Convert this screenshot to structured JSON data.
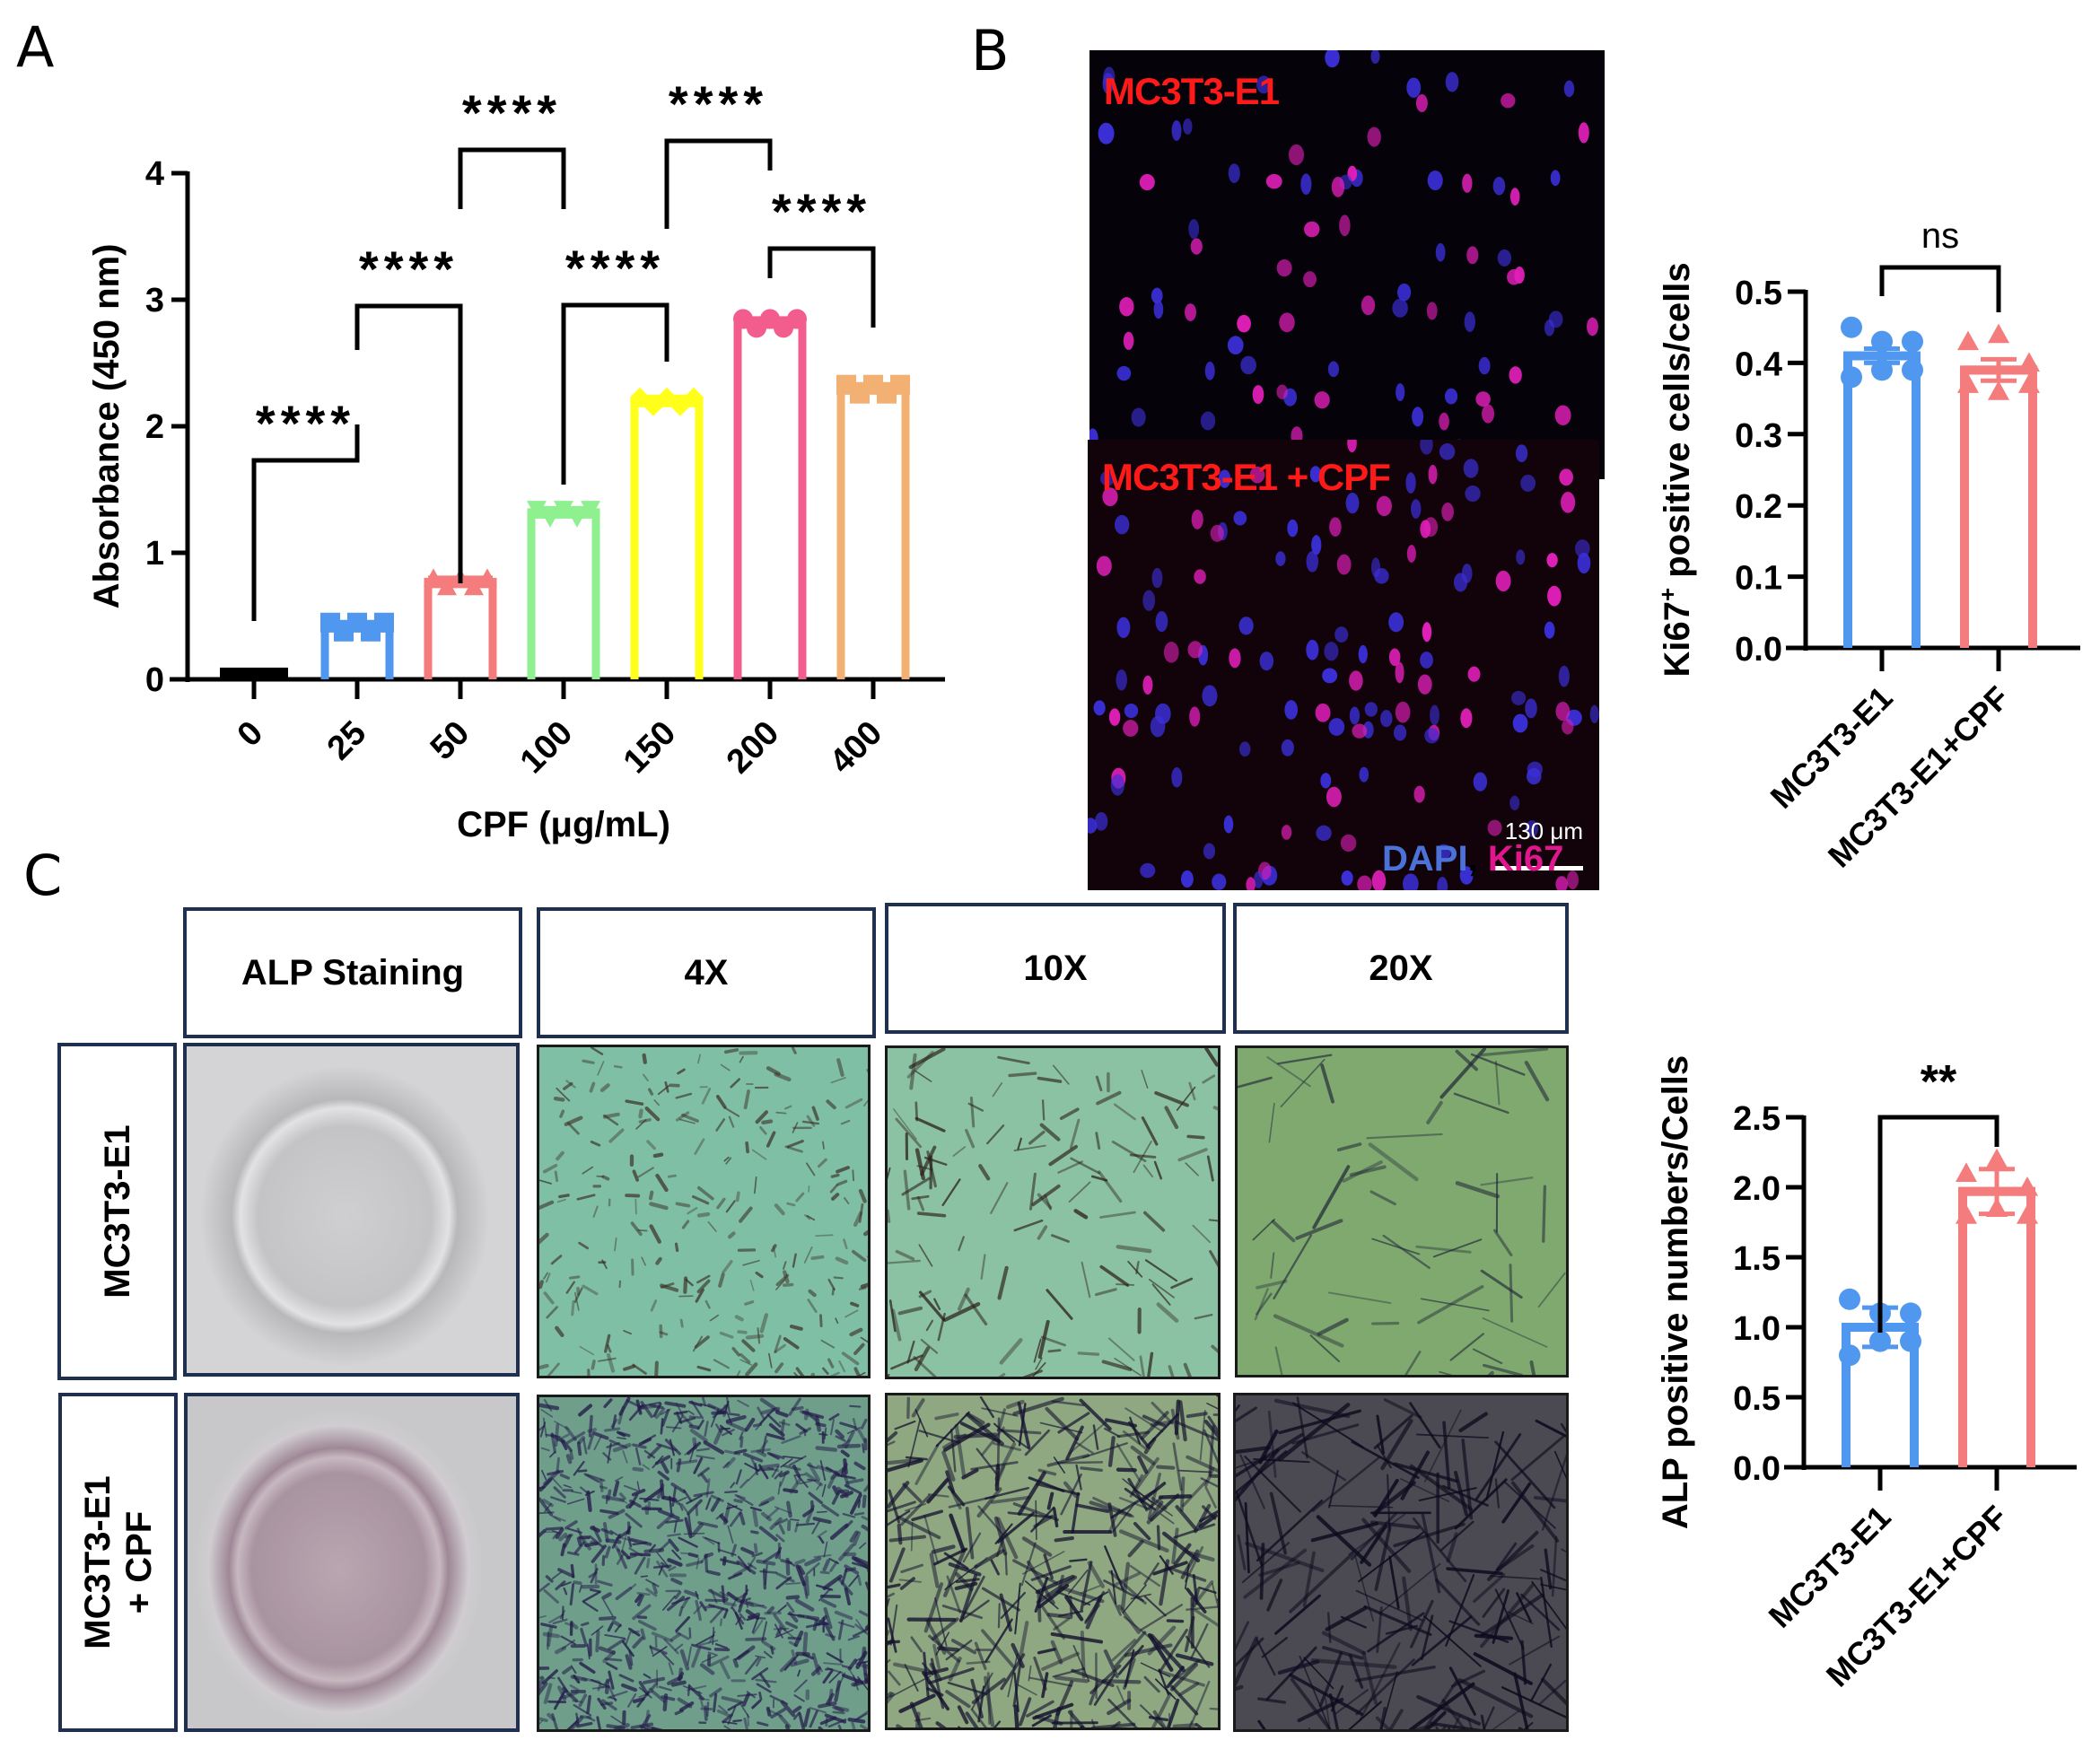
{
  "panels": {
    "A": "A",
    "B": "B",
    "C": "C"
  },
  "colors": {
    "black": "#000000",
    "blue": "#4f97ef",
    "salmon": "#f57c7c",
    "green": "#8ef08e",
    "yellow": "#ffff1a",
    "pink": "#f25d8e",
    "orange": "#f2b173",
    "box_border": "#1f2f4f",
    "fluor_label": "#ff1a1a",
    "dapi": "#4a72d8",
    "ki67": "#e0168c"
  },
  "chart_data": [
    {
      "id": "panel-A",
      "type": "bar",
      "title": "",
      "xlabel": "CPF (μg/mL)",
      "ylabel": "Absorbance (450 nm)",
      "ylim": [
        0,
        4
      ],
      "yticks": [
        "0",
        "1",
        "2",
        "3",
        "4"
      ],
      "categories": [
        "0",
        "25",
        "50",
        "100",
        "150",
        "200",
        "400"
      ],
      "values": [
        0.05,
        0.42,
        0.77,
        1.32,
        2.2,
        2.82,
        2.3
      ],
      "bar_colors": [
        "#000000",
        "#4f97ef",
        "#f57c7c",
        "#8ef08e",
        "#ffff1a",
        "#f25d8e",
        "#f2b173"
      ],
      "marker_shapes": [
        "square",
        "square",
        "triangle",
        "triangle-down",
        "diamond",
        "circle",
        "square"
      ],
      "grid": false,
      "legend": null,
      "significance": [
        {
          "from": "0",
          "to": "25",
          "label": "****"
        },
        {
          "from": "25",
          "to": "50",
          "label": "****"
        },
        {
          "from": "50",
          "to": "100",
          "label": "****"
        },
        {
          "from": "100",
          "to": "150",
          "label": "****"
        },
        {
          "from": "150",
          "to": "200",
          "label": "****"
        },
        {
          "from": "200",
          "to": "400",
          "label": "****"
        }
      ]
    },
    {
      "id": "panel-B-ki67",
      "type": "bar",
      "title": "",
      "xlabel": "",
      "ylabel": "Ki67+ positive cells/cells",
      "ylabel_main": "Ki67",
      "ylabel_sup": "+",
      "ylabel_rest": " positive cells/cells",
      "ylim": [
        0,
        0.5
      ],
      "yticks": [
        "0.0",
        "0.1",
        "0.2",
        "0.3",
        "0.4",
        "0.5"
      ],
      "categories": [
        "MC3T3-E1",
        "MC3T3-E1+CPF"
      ],
      "values": [
        0.41,
        0.39
      ],
      "errors": [
        0.01,
        0.015
      ],
      "points": [
        [
          0.45,
          0.43,
          0.43,
          0.38,
          0.39,
          0.39
        ],
        [
          0.43,
          0.44,
          0.4,
          0.37,
          0.36,
          0.37
        ]
      ],
      "bar_colors": [
        "#4f97ef",
        "#f57c7c"
      ],
      "marker_shapes": [
        "circle",
        "triangle"
      ],
      "grid": false,
      "legend": null,
      "significance": [
        {
          "from": "MC3T3-E1",
          "to": "MC3T3-E1+CPF",
          "label": "ns"
        }
      ]
    },
    {
      "id": "panel-C-alp",
      "type": "bar",
      "title": "",
      "xlabel": "",
      "ylabel": "ALP positive numbers/Cells",
      "ylim": [
        0,
        2.5
      ],
      "yticks": [
        "0.0",
        "0.5",
        "1.0",
        "1.5",
        "2.0",
        "2.5"
      ],
      "categories": [
        "MC3T3-E1",
        "MC3T3-E1+CPF"
      ],
      "values": [
        1.0,
        1.97
      ],
      "errors": [
        0.14,
        0.16
      ],
      "points": [
        [
          1.2,
          1.1,
          1.1,
          0.8,
          0.9,
          0.9
        ],
        [
          2.1,
          2.2,
          2.0,
          1.8,
          1.85,
          1.8
        ]
      ],
      "bar_colors": [
        "#4f97ef",
        "#f57c7c"
      ],
      "marker_shapes": [
        "circle",
        "triangle"
      ],
      "grid": false,
      "legend": null,
      "significance": [
        {
          "from": "MC3T3-E1",
          "to": "MC3T3-E1+CPF",
          "label": "**"
        }
      ]
    }
  ],
  "panel_b": {
    "images": [
      {
        "label": "MC3T3-E1"
      },
      {
        "label": "MC3T3-E1 + CPF",
        "scale_bar": "130 μm"
      }
    ],
    "stain_legend": {
      "dapi": "DAPI",
      "sep": ",",
      "ki67": "Ki67"
    }
  },
  "panel_c": {
    "column_headers": [
      "ALP Staining",
      "4X",
      "10X",
      "20X"
    ],
    "row_labels": [
      {
        "line1": "MC3T3-E1",
        "line2": ""
      },
      {
        "line1": "MC3T3-E1",
        "line2": "+ CPF"
      }
    ]
  }
}
